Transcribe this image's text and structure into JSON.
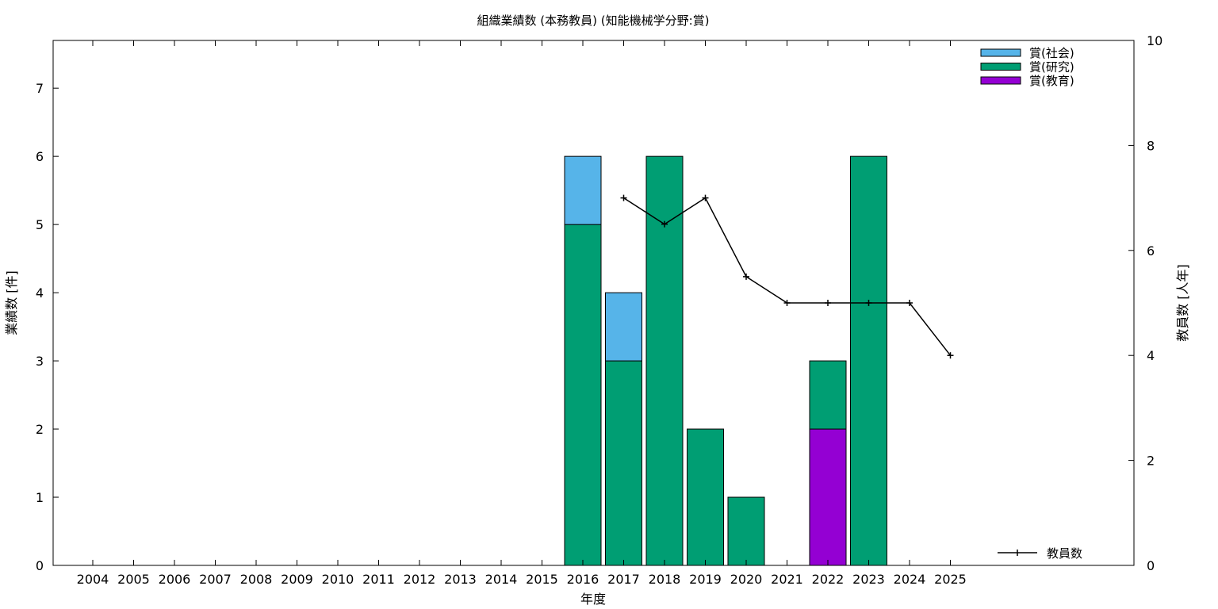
{
  "chart_data": {
    "type": "bar",
    "title": "組織業績数 (本務教員) (知能機械学分野:賞)",
    "xlabel": "年度",
    "ylabel": "業績数 [件]",
    "y2label": "教員数 [人年]",
    "categories": [
      "2004",
      "2005",
      "2006",
      "2007",
      "2008",
      "2009",
      "2010",
      "2011",
      "2012",
      "2013",
      "2014",
      "2015",
      "2016",
      "2017",
      "2018",
      "2019",
      "2020",
      "2021",
      "2022",
      "2023",
      "2024",
      "2025"
    ],
    "ylim": [
      0,
      7.7
    ],
    "y2lim": [
      0,
      10
    ],
    "yticks": [
      "0",
      "1",
      "2",
      "3",
      "4",
      "5",
      "6",
      "7"
    ],
    "y2ticks": [
      "0",
      "2",
      "4",
      "6",
      "8",
      "10"
    ],
    "stacked": true,
    "series": [
      {
        "name": "賞(教育)",
        "color": "#9400d3",
        "values": [
          0,
          0,
          0,
          0,
          0,
          0,
          0,
          0,
          0,
          0,
          0,
          0,
          0,
          0,
          0,
          0,
          0,
          0,
          2,
          0,
          0,
          0
        ]
      },
      {
        "name": "賞(研究)",
        "color": "#009e73",
        "values": [
          0,
          0,
          0,
          0,
          0,
          0,
          0,
          0,
          0,
          0,
          0,
          0,
          5,
          3,
          6,
          2,
          1,
          0,
          1,
          6,
          0,
          0
        ]
      },
      {
        "name": "賞(社会)",
        "color": "#56b4e9",
        "values": [
          0,
          0,
          0,
          0,
          0,
          0,
          0,
          0,
          0,
          0,
          0,
          0,
          1,
          1,
          0,
          0,
          0,
          0,
          0,
          0,
          0,
          0
        ]
      }
    ],
    "line": {
      "name": "教員数",
      "axis": "y2",
      "color": "#000000",
      "x": [
        "2017",
        "2018",
        "2019",
        "2020",
        "2021",
        "2022",
        "2023",
        "2024",
        "2025"
      ],
      "values": [
        7,
        6.5,
        7,
        5.5,
        5,
        5,
        5,
        5,
        4
      ]
    },
    "legend_bars_order": [
      "賞(社会)",
      "賞(研究)",
      "賞(教育)"
    ],
    "legend_placement": "top-right",
    "line_legend_placement": "bottom-right",
    "grid": false
  }
}
